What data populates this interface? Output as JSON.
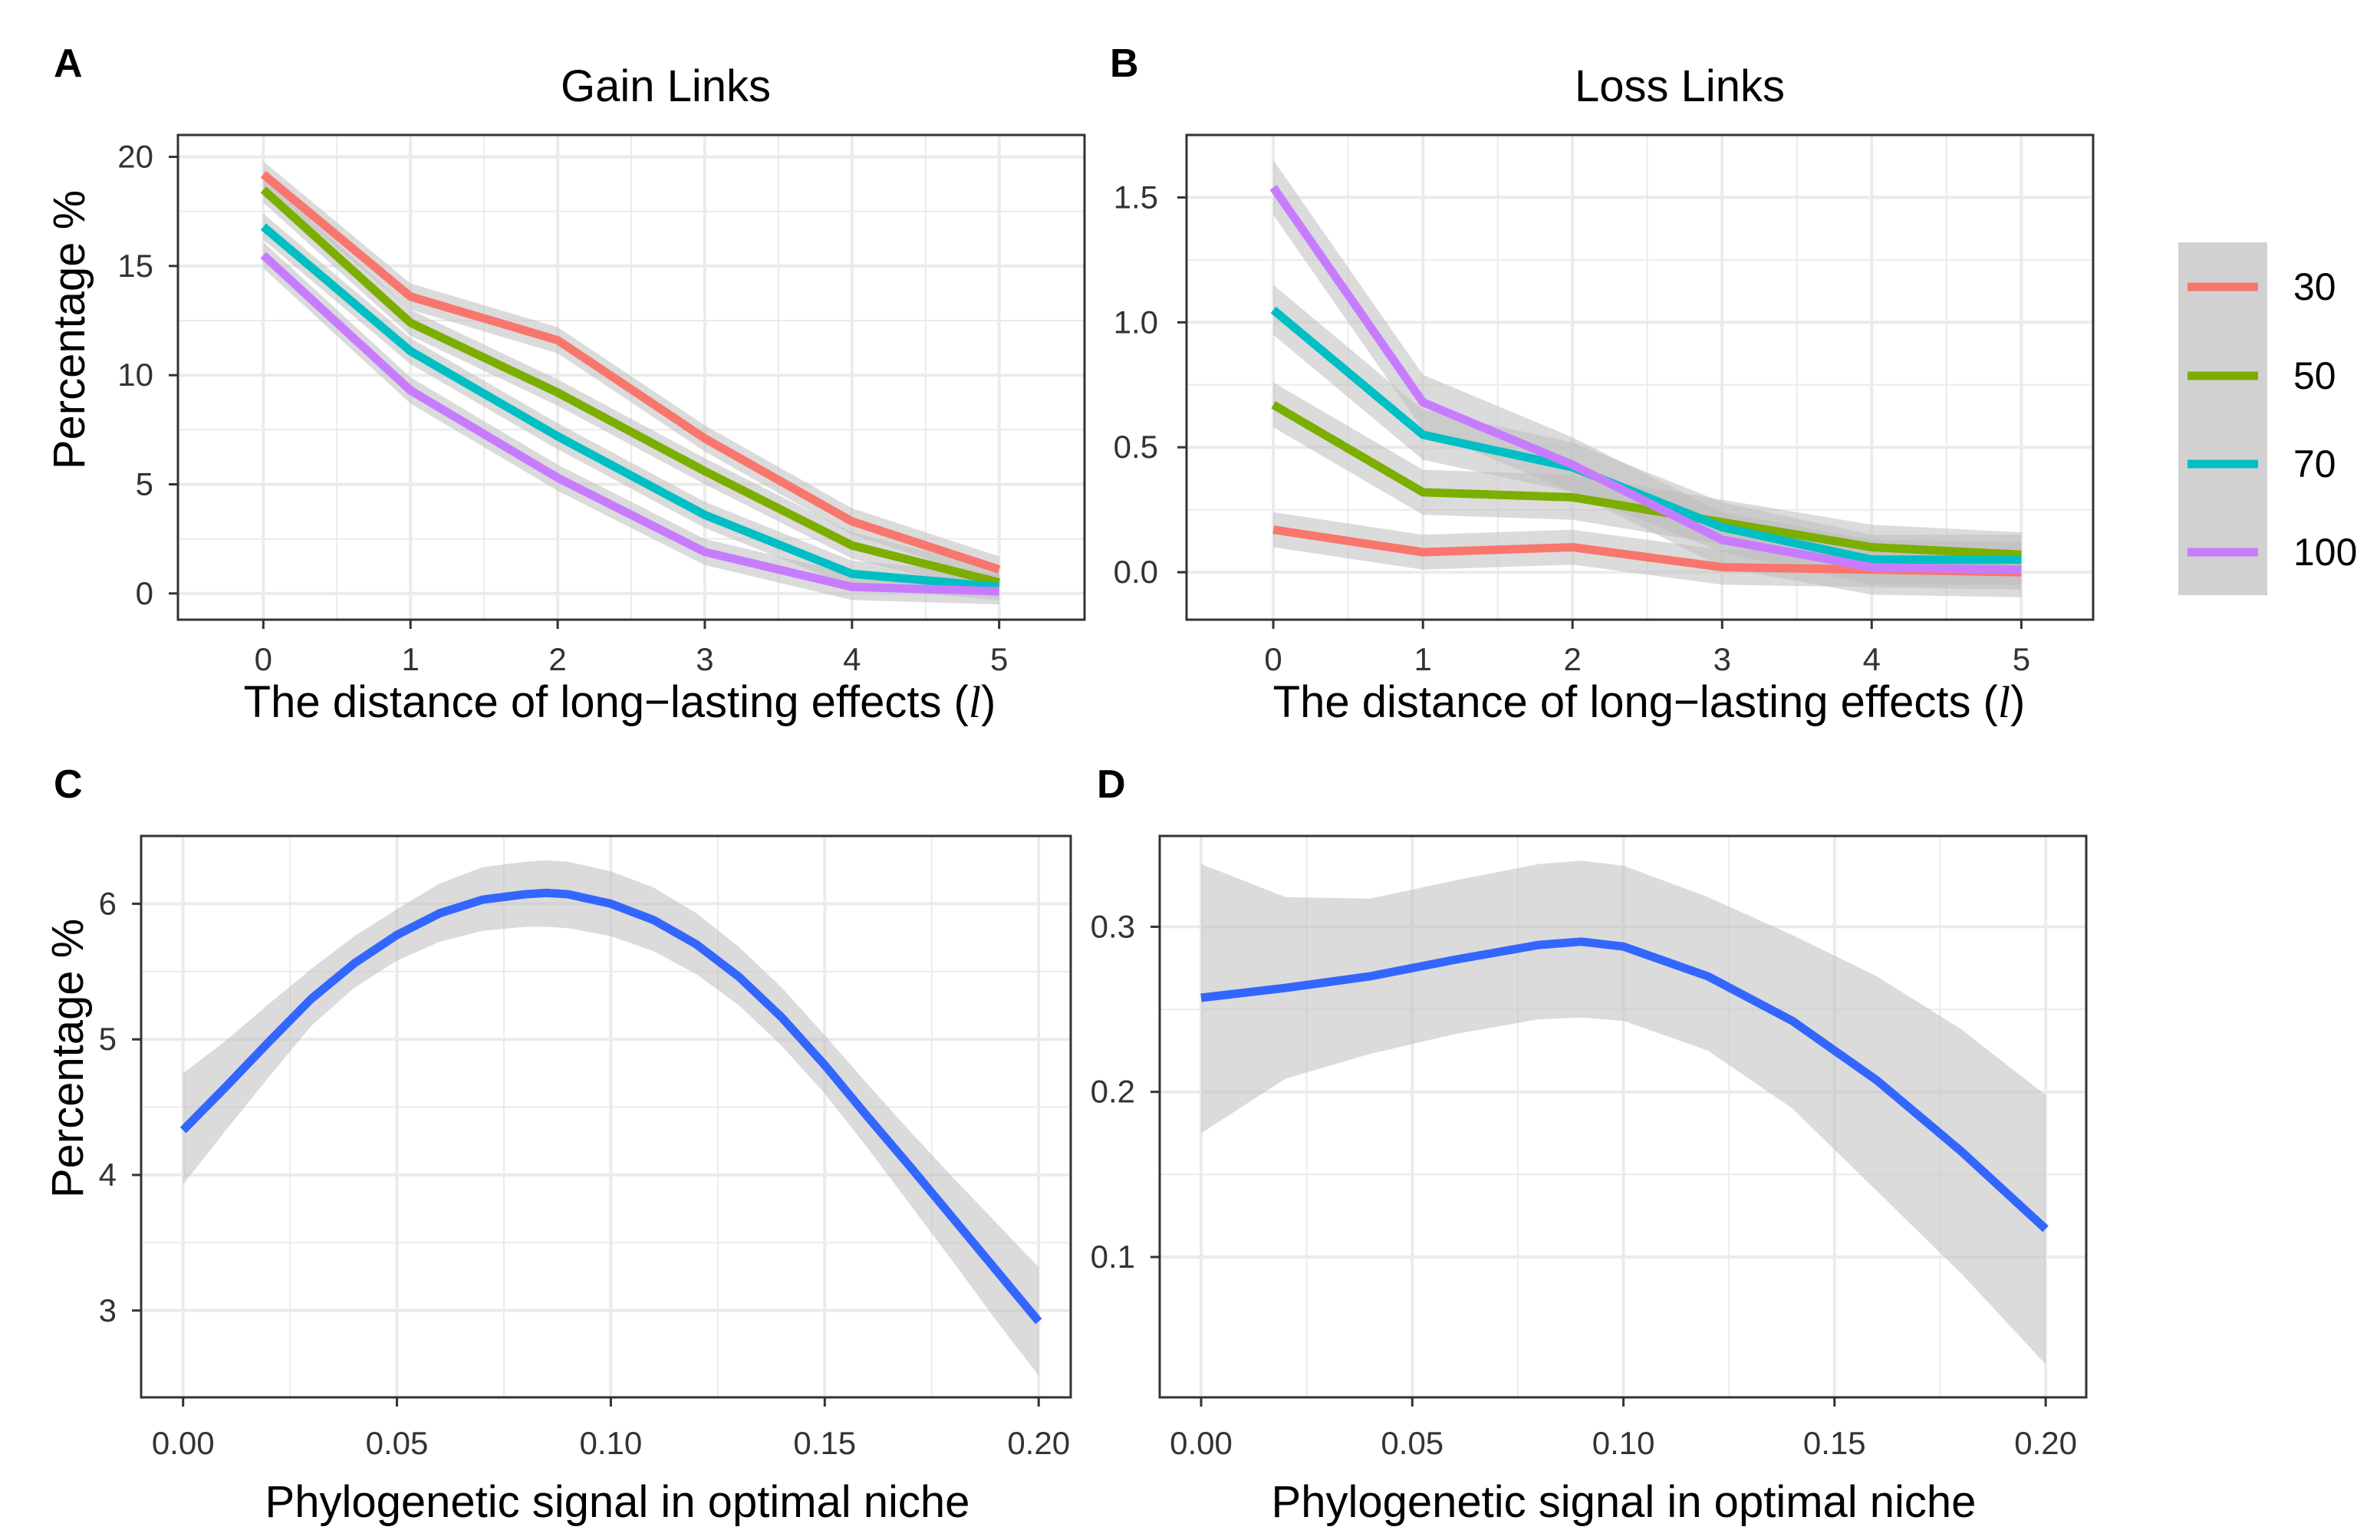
{
  "chart_data": [
    {
      "panel": "A",
      "type": "line",
      "title": "Gain Links",
      "xlabel": "The distance of long−lasting effects (",
      "xlabel_symbol": "l",
      "xlabel_close": ")",
      "ylabel": "Percentage %",
      "xlim": [
        -0.58,
        5.58
      ],
      "ylim": [
        -1.2,
        21.0
      ],
      "xticks": [
        0,
        1,
        2,
        3,
        4,
        5
      ],
      "xtick_labels": [
        "0",
        "1",
        "2",
        "3",
        "4",
        "5"
      ],
      "yticks": [
        0,
        5,
        10,
        15,
        20
      ],
      "ytick_labels": [
        "0",
        "5",
        "10",
        "15",
        "20"
      ],
      "grid": true,
      "x": [
        0,
        1,
        2,
        3,
        4,
        5
      ],
      "series": [
        {
          "name": "30",
          "color": "#F8766D",
          "values": [
            19.2,
            13.6,
            11.6,
            7.1,
            3.3,
            1.1
          ],
          "ci": 0.6
        },
        {
          "name": "50",
          "color": "#7CAE00",
          "values": [
            18.5,
            12.4,
            9.2,
            5.6,
            2.2,
            0.5
          ],
          "ci": 0.6
        },
        {
          "name": "70",
          "color": "#00BFC4",
          "values": [
            16.8,
            11.1,
            7.2,
            3.6,
            0.9,
            0.3
          ],
          "ci": 0.6
        },
        {
          "name": "100",
          "color": "#C77CFF",
          "values": [
            15.5,
            9.3,
            5.3,
            1.9,
            0.3,
            0.1
          ],
          "ci": 0.6
        }
      ]
    },
    {
      "panel": "B",
      "type": "line",
      "title": "Loss Links",
      "xlabel": "The distance of long−lasting effects (",
      "xlabel_symbol": "l",
      "xlabel_close": ")",
      "ylabel": "",
      "xlim": [
        -0.58,
        5.48
      ],
      "ylim": [
        -0.19,
        1.75
      ],
      "xticks": [
        0,
        1,
        2,
        3,
        4,
        5
      ],
      "xtick_labels": [
        "0",
        "1",
        "2",
        "3",
        "4",
        "5"
      ],
      "yticks": [
        0.0,
        0.5,
        1.0,
        1.5
      ],
      "ytick_labels": [
        "0.0",
        "0.5",
        "1.0",
        "1.5"
      ],
      "grid": true,
      "x": [
        0,
        1,
        2,
        3,
        4,
        5
      ],
      "series": [
        {
          "name": "30",
          "color": "#F8766D",
          "values": [
            0.17,
            0.08,
            0.1,
            0.02,
            0.01,
            0.0
          ],
          "ci": 0.07
        },
        {
          "name": "50",
          "color": "#7CAE00",
          "values": [
            0.67,
            0.32,
            0.3,
            0.2,
            0.1,
            0.07
          ],
          "ci": 0.09
        },
        {
          "name": "70",
          "color": "#00BFC4",
          "values": [
            1.05,
            0.55,
            0.42,
            0.18,
            0.05,
            0.05
          ],
          "ci": 0.1
        },
        {
          "name": "100",
          "color": "#C77CFF",
          "values": [
            1.54,
            0.68,
            0.43,
            0.13,
            0.02,
            0.01
          ],
          "ci": 0.11
        }
      ]
    },
    {
      "panel": "C",
      "type": "line",
      "title": "",
      "xlabel": "Phylogenetic signal in optimal niche",
      "ylabel": "Percentage %",
      "xlim": [
        -0.0098,
        0.2075
      ],
      "ylim": [
        2.36,
        6.5
      ],
      "xticks": [
        0.0,
        0.05,
        0.1,
        0.15,
        0.2
      ],
      "xtick_labels": [
        "0.00",
        "0.05",
        "0.10",
        "0.15",
        "0.20"
      ],
      "yticks": [
        3,
        4,
        5,
        6
      ],
      "ytick_labels": [
        "3",
        "4",
        "5",
        "6"
      ],
      "grid": true,
      "series": [
        {
          "name": "smooth",
          "color": "#3366FF",
          "x": [
            0.0,
            0.01,
            0.02,
            0.03,
            0.04,
            0.05,
            0.06,
            0.07,
            0.08,
            0.085,
            0.09,
            0.1,
            0.11,
            0.12,
            0.13,
            0.14,
            0.15,
            0.16,
            0.17,
            0.18,
            0.19,
            0.2
          ],
          "values": [
            4.33,
            4.65,
            4.98,
            5.3,
            5.56,
            5.77,
            5.93,
            6.03,
            6.07,
            6.08,
            6.07,
            6.0,
            5.88,
            5.7,
            5.46,
            5.16,
            4.81,
            4.43,
            4.06,
            3.68,
            3.3,
            2.92
          ],
          "lower": [
            3.93,
            4.33,
            4.72,
            5.1,
            5.38,
            5.58,
            5.72,
            5.8,
            5.83,
            5.83,
            5.82,
            5.76,
            5.65,
            5.48,
            5.25,
            4.95,
            4.6,
            4.2,
            3.78,
            3.36,
            2.93,
            2.52
          ],
          "upper": [
            4.75,
            4.99,
            5.26,
            5.52,
            5.76,
            5.96,
            6.15,
            6.27,
            6.31,
            6.32,
            6.31,
            6.24,
            6.12,
            5.93,
            5.68,
            5.38,
            5.03,
            4.67,
            4.32,
            3.98,
            3.65,
            3.32
          ]
        }
      ]
    },
    {
      "panel": "D",
      "type": "line",
      "title": "",
      "xlabel": "Phylogenetic signal in optimal niche",
      "ylabel": "",
      "xlim": [
        -0.0098,
        0.2096
      ],
      "ylim": [
        0.015,
        0.355
      ],
      "xticks": [
        0.0,
        0.05,
        0.1,
        0.15,
        0.2
      ],
      "xtick_labels": [
        "0.00",
        "0.05",
        "0.10",
        "0.15",
        "0.20"
      ],
      "yticks": [
        0.1,
        0.2,
        0.3
      ],
      "ytick_labels": [
        "0.1",
        "0.2",
        "0.3"
      ],
      "grid": true,
      "series": [
        {
          "name": "smooth",
          "color": "#3366FF",
          "x": [
            0.0,
            0.02,
            0.04,
            0.06,
            0.08,
            0.09,
            0.1,
            0.12,
            0.14,
            0.16,
            0.18,
            0.2
          ],
          "values": [
            0.257,
            0.263,
            0.27,
            0.28,
            0.289,
            0.291,
            0.288,
            0.27,
            0.243,
            0.207,
            0.164,
            0.117
          ],
          "lower": [
            0.175,
            0.208,
            0.223,
            0.235,
            0.244,
            0.245,
            0.243,
            0.225,
            0.19,
            0.14,
            0.09,
            0.035
          ],
          "upper": [
            0.338,
            0.318,
            0.317,
            0.328,
            0.338,
            0.34,
            0.337,
            0.318,
            0.295,
            0.27,
            0.238,
            0.198
          ]
        }
      ]
    }
  ],
  "legend": {
    "entries": [
      {
        "label": "30",
        "color": "#F8766D"
      },
      {
        "label": "50",
        "color": "#7CAE00"
      },
      {
        "label": "70",
        "color": "#00BFC4"
      },
      {
        "label": "100",
        "color": "#C77CFF"
      }
    ]
  },
  "colors": {
    "ribbon": "#BEBEBE",
    "grid": "#EBEBEB",
    "panel_border": "#333333",
    "smooth_line": "#3366FF"
  }
}
